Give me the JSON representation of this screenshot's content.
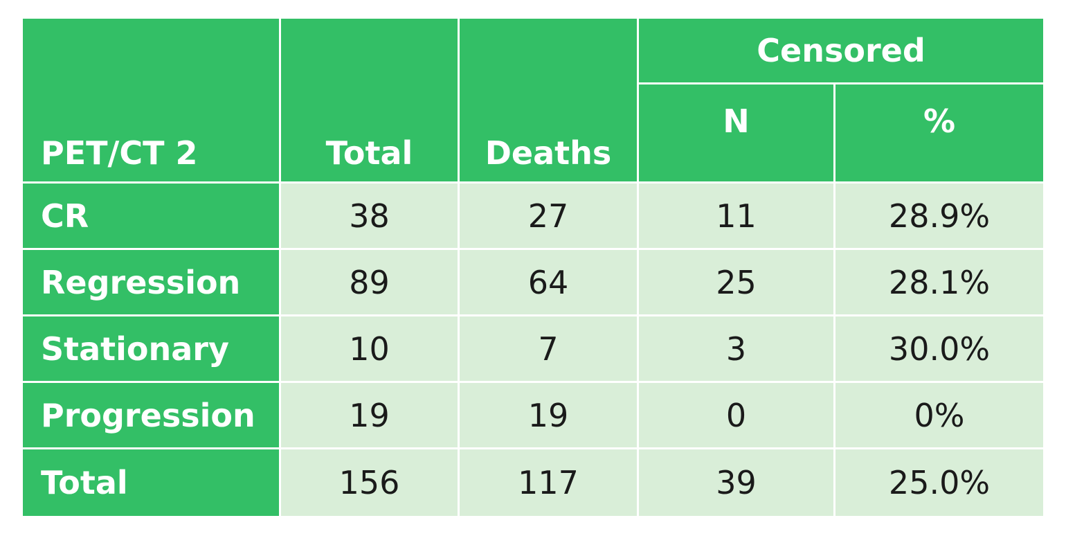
{
  "table": {
    "header": {
      "row_label": "PET/CT 2",
      "total": "Total",
      "deaths": "Deaths",
      "censored": "Censored",
      "n": "N",
      "pct": "%"
    },
    "rows": [
      [
        "CR",
        "38",
        "27",
        "11",
        "28.9%"
      ],
      [
        "Regression",
        "89",
        "64",
        "25",
        "28.1%"
      ],
      [
        "Stationary",
        "10",
        "7",
        "3",
        "30.0%"
      ],
      [
        "Progression",
        "19",
        "19",
        "0",
        "0%"
      ],
      [
        "Total",
        "156",
        "117",
        "39",
        "25.0%"
      ]
    ]
  }
}
